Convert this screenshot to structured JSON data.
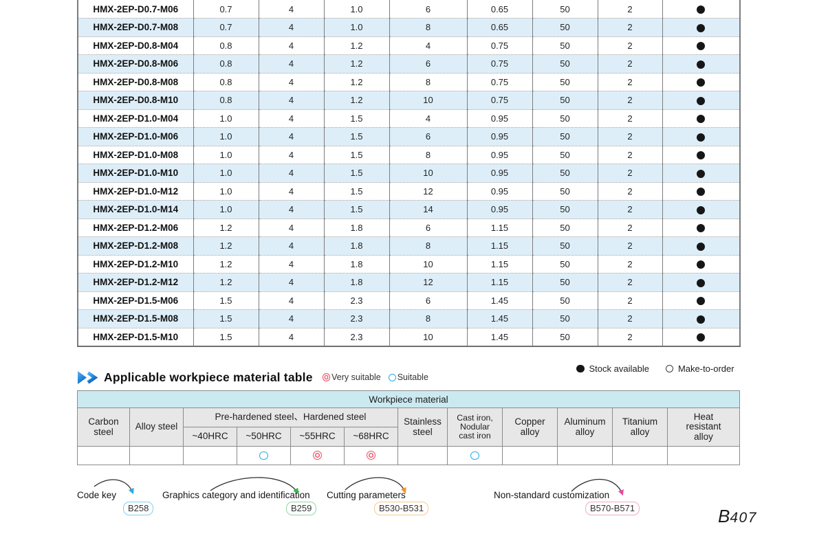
{
  "spec_table": {
    "rows": [
      {
        "model": "HMX-2EP-D0.7-M06",
        "values": [
          "0.7",
          "4",
          "1.0",
          "6",
          "0.65",
          "50",
          "2"
        ],
        "stock": "available"
      },
      {
        "model": "HMX-2EP-D0.7-M08",
        "values": [
          "0.7",
          "4",
          "1.0",
          "8",
          "0.65",
          "50",
          "2"
        ],
        "stock": "available"
      },
      {
        "model": "HMX-2EP-D0.8-M04",
        "values": [
          "0.8",
          "4",
          "1.2",
          "4",
          "0.75",
          "50",
          "2"
        ],
        "stock": "available"
      },
      {
        "model": "HMX-2EP-D0.8-M06",
        "values": [
          "0.8",
          "4",
          "1.2",
          "6",
          "0.75",
          "50",
          "2"
        ],
        "stock": "available"
      },
      {
        "model": "HMX-2EP-D0.8-M08",
        "values": [
          "0.8",
          "4",
          "1.2",
          "8",
          "0.75",
          "50",
          "2"
        ],
        "stock": "available"
      },
      {
        "model": "HMX-2EP-D0.8-M10",
        "values": [
          "0.8",
          "4",
          "1.2",
          "10",
          "0.75",
          "50",
          "2"
        ],
        "stock": "available"
      },
      {
        "model": "HMX-2EP-D1.0-M04",
        "values": [
          "1.0",
          "4",
          "1.5",
          "4",
          "0.95",
          "50",
          "2"
        ],
        "stock": "available"
      },
      {
        "model": "HMX-2EP-D1.0-M06",
        "values": [
          "1.0",
          "4",
          "1.5",
          "6",
          "0.95",
          "50",
          "2"
        ],
        "stock": "available"
      },
      {
        "model": "HMX-2EP-D1.0-M08",
        "values": [
          "1.0",
          "4",
          "1.5",
          "8",
          "0.95",
          "50",
          "2"
        ],
        "stock": "available"
      },
      {
        "model": "HMX-2EP-D1.0-M10",
        "values": [
          "1.0",
          "4",
          "1.5",
          "10",
          "0.95",
          "50",
          "2"
        ],
        "stock": "available"
      },
      {
        "model": "HMX-2EP-D1.0-M12",
        "values": [
          "1.0",
          "4",
          "1.5",
          "12",
          "0.95",
          "50",
          "2"
        ],
        "stock": "available"
      },
      {
        "model": "HMX-2EP-D1.0-M14",
        "values": [
          "1.0",
          "4",
          "1.5",
          "14",
          "0.95",
          "50",
          "2"
        ],
        "stock": "available"
      },
      {
        "model": "HMX-2EP-D1.2-M06",
        "values": [
          "1.2",
          "4",
          "1.8",
          "6",
          "1.15",
          "50",
          "2"
        ],
        "stock": "available"
      },
      {
        "model": "HMX-2EP-D1.2-M08",
        "values": [
          "1.2",
          "4",
          "1.8",
          "8",
          "1.15",
          "50",
          "2"
        ],
        "stock": "available"
      },
      {
        "model": "HMX-2EP-D1.2-M10",
        "values": [
          "1.2",
          "4",
          "1.8",
          "10",
          "1.15",
          "50",
          "2"
        ],
        "stock": "available"
      },
      {
        "model": "HMX-2EP-D1.2-M12",
        "values": [
          "1.2",
          "4",
          "1.8",
          "12",
          "1.15",
          "50",
          "2"
        ],
        "stock": "available"
      },
      {
        "model": "HMX-2EP-D1.5-M06",
        "values": [
          "1.5",
          "4",
          "2.3",
          "6",
          "1.45",
          "50",
          "2"
        ],
        "stock": "available"
      },
      {
        "model": "HMX-2EP-D1.5-M08",
        "values": [
          "1.5",
          "4",
          "2.3",
          "8",
          "1.45",
          "50",
          "2"
        ],
        "stock": "available"
      },
      {
        "model": "HMX-2EP-D1.5-M10",
        "values": [
          "1.5",
          "4",
          "2.3",
          "10",
          "1.45",
          "50",
          "2"
        ],
        "stock": "available"
      }
    ]
  },
  "section_header": {
    "title": "Applicable workpiece material table",
    "legend_very": "Very suitable",
    "legend_suitable": "Suitable",
    "stock_available": "Stock available",
    "make_to_order": "Make-to-order"
  },
  "workpiece_table": {
    "band_title": "Workpiece material",
    "columns": {
      "carbon": "Carbon\nsteel",
      "alloy": "Alloy steel",
      "group": "Pre-hardened steel、Hardened steel",
      "sub": [
        "~40HRC",
        "~50HRC",
        "~55HRC",
        "~68HRC"
      ],
      "stainless": "Stainless\nsteel",
      "cast": "Cast iron,\nNodular\ncast iron",
      "copper": "Copper\nalloy",
      "aluminum": "Aluminum\nalloy",
      "titanium": "Titanium\nalloy",
      "heat": "Heat\nresistant\nalloy"
    },
    "marks": [
      "",
      "",
      "",
      "suitable",
      "very",
      "very",
      "",
      "suitable",
      "",
      "",
      "",
      ""
    ]
  },
  "footer": {
    "links": [
      {
        "label": "Code key",
        "ref": "B258",
        "arrow_color": "#29abe2",
        "box_border": "#7fd0ee"
      },
      {
        "label": "Graphics category and identification",
        "ref": "B259",
        "arrow_color": "#39b54a",
        "box_border": "#93d5a8"
      },
      {
        "label": "Cutting parameters",
        "ref": "B530-B531",
        "arrow_color": "#f7941d",
        "box_border": "#f8c98e"
      },
      {
        "label": "Non-standard customization",
        "ref": "B570-B571",
        "arrow_color": "#ed4a9c",
        "box_border": "#f3a8c8"
      }
    ],
    "page_prefix": "B",
    "page_digits": "407"
  },
  "colors": {
    "very_suitable_red": "#ef4f63",
    "suitable_blue": "#29abe2",
    "row_alt_blue": "#ddeef8",
    "band_cyan": "#cbe9f1",
    "stock_dot_black": "#161616"
  }
}
